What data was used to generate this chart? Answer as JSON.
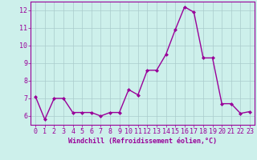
{
  "x": [
    0,
    1,
    2,
    3,
    4,
    5,
    6,
    7,
    8,
    9,
    10,
    11,
    12,
    13,
    14,
    15,
    16,
    17,
    18,
    19,
    20,
    21,
    22,
    23
  ],
  "y": [
    7.1,
    5.8,
    7.0,
    7.0,
    6.2,
    6.2,
    6.2,
    6.0,
    6.2,
    6.2,
    7.5,
    7.2,
    8.6,
    8.6,
    9.5,
    10.9,
    12.2,
    11.9,
    9.3,
    9.3,
    6.7,
    6.7,
    6.15,
    6.25
  ],
  "line_color": "#990099",
  "marker": "D",
  "marker_size": 2,
  "linewidth": 1.0,
  "xlabel": "Windchill (Refroidissement éolien,°C)",
  "ylim": [
    5.5,
    12.5
  ],
  "xlim": [
    -0.5,
    23.5
  ],
  "yticks": [
    6,
    7,
    8,
    9,
    10,
    11,
    12
  ],
  "xticks": [
    0,
    1,
    2,
    3,
    4,
    5,
    6,
    7,
    8,
    9,
    10,
    11,
    12,
    13,
    14,
    15,
    16,
    17,
    18,
    19,
    20,
    21,
    22,
    23
  ],
  "bg_color": "#cdf0eb",
  "grid_color": "#aacccc",
  "tick_color": "#990099",
  "label_color": "#990099",
  "xlabel_fontsize": 6,
  "tick_fontsize": 6
}
